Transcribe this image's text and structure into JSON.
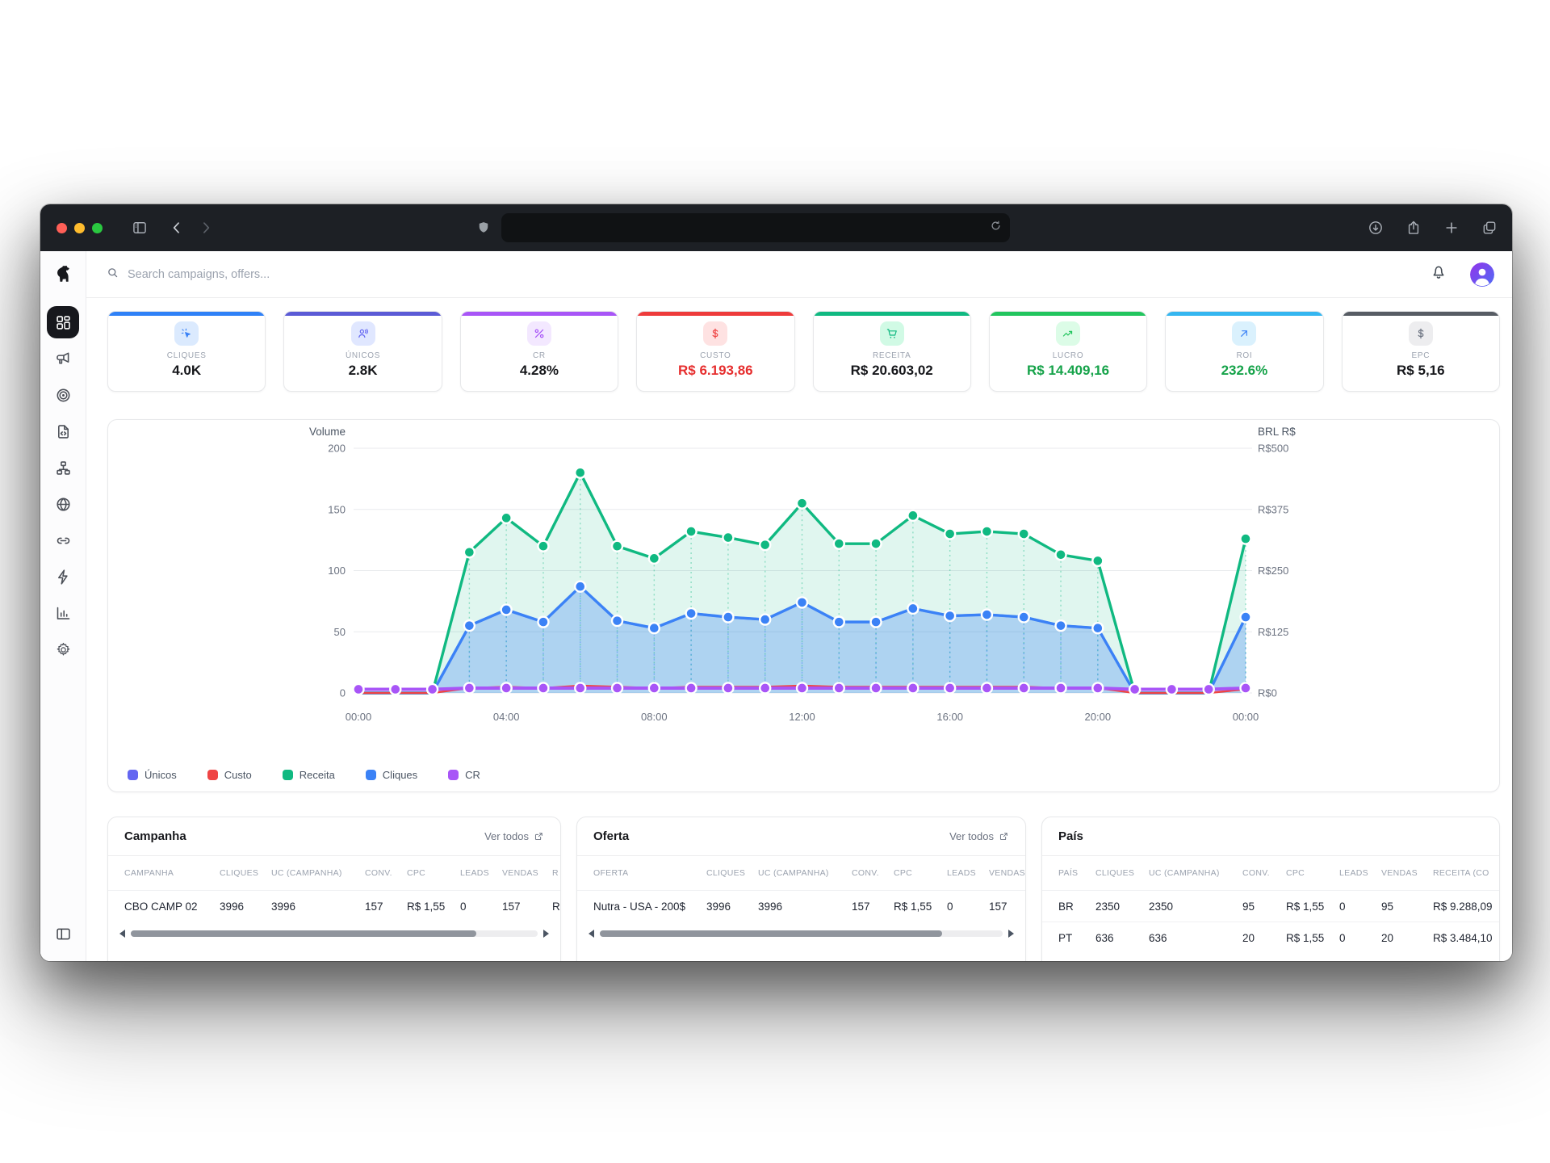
{
  "browser": {
    "traffic_lights": [
      "close",
      "minimize",
      "zoom"
    ],
    "url_value": "",
    "colors": {
      "close": "#ff5f57",
      "minimize": "#febc2e",
      "zoom": "#2ac840"
    }
  },
  "app": {
    "search_placeholder": "Search campaigns, offers..."
  },
  "sidebar": {
    "items": [
      {
        "name": "sidebar-item-dashboard",
        "icon": "grid",
        "active": true
      },
      {
        "name": "sidebar-item-campaigns",
        "icon": "megaphone",
        "active": false
      },
      {
        "name": "sidebar-item-offers",
        "icon": "target",
        "active": false
      },
      {
        "name": "sidebar-item-landers",
        "icon": "file-code",
        "active": false
      },
      {
        "name": "sidebar-item-flows",
        "icon": "sitemap",
        "active": false
      },
      {
        "name": "sidebar-item-domains",
        "icon": "globe",
        "active": false
      },
      {
        "name": "sidebar-item-links",
        "icon": "link",
        "active": false
      },
      {
        "name": "sidebar-item-automation",
        "icon": "bolt",
        "active": false
      },
      {
        "name": "sidebar-item-reports",
        "icon": "bar-chart",
        "active": false
      },
      {
        "name": "sidebar-item-settings",
        "icon": "gear",
        "active": false
      }
    ]
  },
  "kpis": [
    {
      "label": "CLIQUES",
      "value": "4.0K",
      "accent": "#2f81f7",
      "icon": "cursor-click",
      "icon_color": "#3b82f6",
      "icon_bg": "#dbeafe",
      "value_color": "#16171b"
    },
    {
      "label": "ÚNICOS",
      "value": "2.8K",
      "accent": "#5b5bd6",
      "icon": "users",
      "icon_color": "#6366f1",
      "icon_bg": "#e0e7ff",
      "value_color": "#16171b"
    },
    {
      "label": "CR",
      "value": "4.28%",
      "accent": "#a855f7",
      "icon": "percent",
      "icon_color": "#a855f7",
      "icon_bg": "#f3e8ff",
      "value_color": "#16171b"
    },
    {
      "label": "CUSTO",
      "value": "R$ 6.193,86",
      "accent": "#ee3b3b",
      "icon": "dollar",
      "icon_color": "#ef4444",
      "icon_bg": "#fee2e2",
      "value_color": "#e62e2e"
    },
    {
      "label": "RECEITA",
      "value": "R$ 20.603,02",
      "accent": "#10b981",
      "icon": "shopping-cart",
      "icon_color": "#10b981",
      "icon_bg": "#d1fae5",
      "value_color": "#16171b"
    },
    {
      "label": "LUCRO",
      "value": "R$ 14.409,16",
      "accent": "#22c55e",
      "icon": "trending-up",
      "icon_color": "#22c55e",
      "icon_bg": "#dcfce7",
      "value_color": "#16a34a"
    },
    {
      "label": "ROI",
      "value": "232.6%",
      "accent": "#35b6f0",
      "icon": "arrow-up-right",
      "icon_color": "#3b82f6",
      "icon_bg": "#daf1fd",
      "value_color": "#16a34a"
    },
    {
      "label": "EPC",
      "value": "R$ 5,16",
      "accent": "#575c64",
      "icon": "dollar",
      "icon_color": "#6b7280",
      "icon_bg": "#ededef",
      "value_color": "#16171b"
    }
  ],
  "chart_data": {
    "type": "area",
    "points": 25,
    "x_ticks": {
      "indices": [
        0,
        4,
        8,
        12,
        16,
        20,
        24
      ],
      "labels": [
        "00:00",
        "04:00",
        "08:00",
        "12:00",
        "16:00",
        "20:00",
        "00:00"
      ]
    },
    "left_axis": {
      "title": "Volume",
      "ticks": [
        0,
        50,
        100,
        150,
        200
      ],
      "max": 200
    },
    "right_axis": {
      "title": "BRL R$",
      "tick_labels": [
        "R$0",
        "R$125",
        "R$250",
        "R$375",
        "R$500"
      ],
      "max": 500
    },
    "grid": "horizontal",
    "legend_position": "bottom-left",
    "series": [
      {
        "name": "Únicos",
        "color": "#6366f1",
        "fill": false,
        "values": [
          0,
          0,
          0,
          55,
          68,
          58,
          87,
          59,
          53,
          65,
          62,
          60,
          74,
          58,
          58,
          69,
          63,
          64,
          62,
          55,
          53,
          0,
          0,
          0,
          62
        ]
      },
      {
        "name": "Custo",
        "color": "#ef4444",
        "fill": false,
        "values": [
          0,
          0,
          0,
          4,
          5,
          4,
          6,
          5,
          4,
          5,
          5,
          5,
          6,
          5,
          5,
          5,
          5,
          5,
          5,
          4,
          4,
          0,
          0,
          0,
          3
        ]
      },
      {
        "name": "Receita",
        "color": "#10b981",
        "fill": true,
        "values": [
          0,
          0,
          0,
          115,
          143,
          120,
          180,
          120,
          110,
          132,
          127,
          121,
          155,
          122,
          122,
          145,
          130,
          132,
          130,
          113,
          108,
          0,
          0,
          0,
          126
        ]
      },
      {
        "name": "Cliques",
        "color": "#3b82f6",
        "fill": true,
        "values": [
          0,
          0,
          0,
          55,
          68,
          58,
          87,
          59,
          53,
          65,
          62,
          60,
          74,
          58,
          58,
          69,
          63,
          64,
          62,
          55,
          53,
          0,
          0,
          0,
          62
        ]
      },
      {
        "name": "CR",
        "color": "#a855f7",
        "fill": false,
        "values": [
          3,
          3,
          3,
          4,
          4,
          4,
          4,
          4,
          4,
          4,
          4,
          4,
          4,
          4,
          4,
          4,
          4,
          4,
          4,
          4,
          4,
          3,
          3,
          3,
          4
        ]
      }
    ],
    "legend": [
      "Únicos",
      "Custo",
      "Receita",
      "Cliques",
      "CR"
    ]
  },
  "tables": [
    {
      "title": "Campanha",
      "link": "Ver todos",
      "has_scrollbar": true,
      "headers": [
        "CAMPANHA",
        "CLIQUES",
        "UC (CAMPANHA)",
        "CONV.",
        "CPC",
        "LEADS",
        "VENDAS",
        "R"
      ],
      "rows": [
        [
          "CBO CAMP 02",
          "3996",
          "3996",
          "157",
          "R$ 1,55",
          "0",
          "157",
          "R"
        ]
      ]
    },
    {
      "title": "Oferta",
      "link": "Ver todos",
      "has_scrollbar": true,
      "headers": [
        "OFERTA",
        "CLIQUES",
        "UC (CAMPANHA)",
        "CONV.",
        "CPC",
        "LEADS",
        "VENDAS"
      ],
      "rows": [
        [
          "Nutra - USA - 200$",
          "3996",
          "3996",
          "157",
          "R$ 1,55",
          "0",
          "157"
        ]
      ]
    },
    {
      "title": "País",
      "link": "",
      "has_scrollbar": false,
      "headers": [
        "PAÍS",
        "CLIQUES",
        "UC (CAMPANHA)",
        "CONV.",
        "CPC",
        "LEADS",
        "VENDAS",
        "RECEITA (CO"
      ],
      "rows": [
        [
          "BR",
          "2350",
          "2350",
          "95",
          "R$ 1,55",
          "0",
          "95",
          "R$ 9.288,09"
        ],
        [
          "PT",
          "636",
          "636",
          "20",
          "R$ 1,55",
          "0",
          "20",
          "R$ 3.484,10"
        ]
      ]
    }
  ]
}
